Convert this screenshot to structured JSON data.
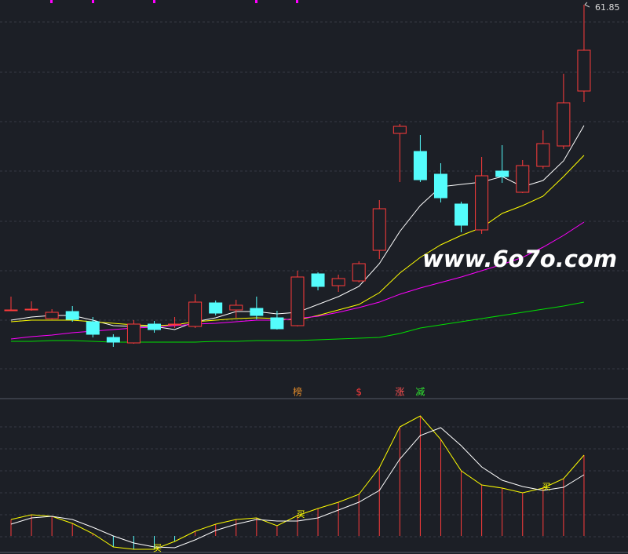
{
  "chart_data": [
    {
      "type": "candlestick",
      "categories": [
        null,
        null,
        null,
        null,
        null,
        null,
        null,
        null,
        null,
        null,
        null,
        null,
        null,
        null,
        null,
        null,
        null,
        null,
        null,
        null,
        null,
        null,
        null,
        null,
        null,
        null,
        null,
        null,
        null
      ],
      "open": [
        22.95,
        23.05,
        21.85,
        22.75,
        21.45,
        19.45,
        18.75,
        21.15,
        21.05,
        20.85,
        23.85,
        22.95,
        23.15,
        21.95,
        20.95,
        27.55,
        26.05,
        26.65,
        30.55,
        45.45,
        43.15,
        40.25,
        36.45,
        33.15,
        40.65,
        37.95,
        41.25,
        43.85,
        50.85
      ],
      "high": [
        24.65,
        24.05,
        23.05,
        23.45,
        22.05,
        19.85,
        21.65,
        21.55,
        22.05,
        24.95,
        24.15,
        24.25,
        24.65,
        22.85,
        27.95,
        27.75,
        27.45,
        29.15,
        36.95,
        46.65,
        45.25,
        41.65,
        36.75,
        42.45,
        43.95,
        42.05,
        45.85,
        53.05,
        61.85
      ],
      "low": [
        22.85,
        22.85,
        21.75,
        21.45,
        19.45,
        18.25,
        18.65,
        20.05,
        20.65,
        20.65,
        22.25,
        21.95,
        21.75,
        20.45,
        20.85,
        25.45,
        25.25,
        26.45,
        29.45,
        39.25,
        39.25,
        36.65,
        32.85,
        32.65,
        39.15,
        37.85,
        40.95,
        43.45,
        49.45
      ],
      "close": [
        22.95,
        23.05,
        22.65,
        21.75,
        19.85,
        18.85,
        21.15,
        20.45,
        21.15,
        23.95,
        22.55,
        23.55,
        22.25,
        20.55,
        27.15,
        25.95,
        26.95,
        28.85,
        35.85,
        46.35,
        39.55,
        37.25,
        33.75,
        40.05,
        39.95,
        41.35,
        44.15,
        49.35,
        56.05
      ],
      "up_color": "#ff3b3b",
      "down_color": "#54fcfc",
      "ylim": [
        13.45,
        62.45
      ],
      "series": [
        {
          "color": "#ffffff",
          "values": [
            21.65,
            22.05,
            22.25,
            22.25,
            21.65,
            20.95,
            20.85,
            20.85,
            20.45,
            21.45,
            21.95,
            22.75,
            22.75,
            22.45,
            22.65,
            23.65,
            24.65,
            25.95,
            28.85,
            32.95,
            36.25,
            38.65,
            38.95,
            39.25,
            39.95,
            38.65,
            39.45,
            41.95,
            46.45
          ]
        },
        {
          "color": "#ffff00",
          "values": [
            21.45,
            21.65,
            21.65,
            21.65,
            21.45,
            21.25,
            21.05,
            20.95,
            21.05,
            21.45,
            21.65,
            21.85,
            21.95,
            21.85,
            21.65,
            22.25,
            22.95,
            23.65,
            25.15,
            27.65,
            29.65,
            31.25,
            32.45,
            33.45,
            35.25,
            36.25,
            37.45,
            39.95,
            42.65
          ]
        },
        {
          "color": "#ff00ff",
          "values": [
            19.25,
            19.55,
            19.75,
            20.05,
            20.25,
            20.45,
            20.65,
            20.75,
            20.95,
            21.15,
            21.25,
            21.45,
            21.65,
            21.65,
            21.85,
            22.15,
            22.65,
            23.25,
            23.95,
            24.95,
            25.75,
            26.45,
            27.15,
            27.95,
            28.75,
            29.65,
            30.95,
            32.45,
            34.15
          ]
        },
        {
          "color": "#00e000",
          "values": [
            18.95,
            18.95,
            19.05,
            19.05,
            18.95,
            18.85,
            18.85,
            18.85,
            18.85,
            18.85,
            18.95,
            18.95,
            19.05,
            19.05,
            19.05,
            19.15,
            19.25,
            19.35,
            19.45,
            19.95,
            20.65,
            21.05,
            21.45,
            21.85,
            22.25,
            22.65,
            23.05,
            23.45,
            23.95
          ]
        }
      ],
      "signals": [
        {
          "text": "榜",
          "index": 14,
          "color": "#e08a2a"
        },
        {
          "text": "$",
          "index": 17,
          "color": "#ff3b3b"
        },
        {
          "text": "涨",
          "index": 19,
          "color": "#ff5050"
        },
        {
          "text": "减",
          "index": 20,
          "color": "#30e030"
        }
      ],
      "watermark": "www.6o7o.com"
    },
    {
      "type": "line",
      "ylim": [
        -11.5,
        87.5
      ],
      "series": [
        {
          "color": "#ffff00",
          "values": [
            10.5,
            13.5,
            12.5,
            8,
            1.5,
            -7,
            -8.5,
            -8.5,
            -3.5,
            3,
            7.5,
            10.5,
            11.5,
            6.5,
            13,
            17.5,
            21.5,
            26.5,
            43.5,
            69.5,
            76.5,
            61.5,
            41.5,
            32.5,
            30.5,
            27.5,
            30.5,
            36.5,
            51.5
          ]
        },
        {
          "color": "#ffffff",
          "values": [
            7.5,
            11.5,
            12.5,
            10.5,
            5.5,
            0,
            -4.5,
            -7,
            -7.5,
            -2.5,
            3.5,
            7.5,
            10.5,
            9.5,
            9.5,
            11.5,
            16.5,
            21.5,
            29,
            49,
            64,
            69,
            57.5,
            44,
            35.5,
            31.5,
            29,
            31,
            39
          ]
        }
      ],
      "bar_colors": [
        "#ff3b3b",
        "#54fcfc"
      ],
      "markers": [
        {
          "text": "买",
          "index": 7
        },
        {
          "text": "买",
          "index": 14
        },
        {
          "text": "买",
          "index": 26
        }
      ]
    }
  ]
}
